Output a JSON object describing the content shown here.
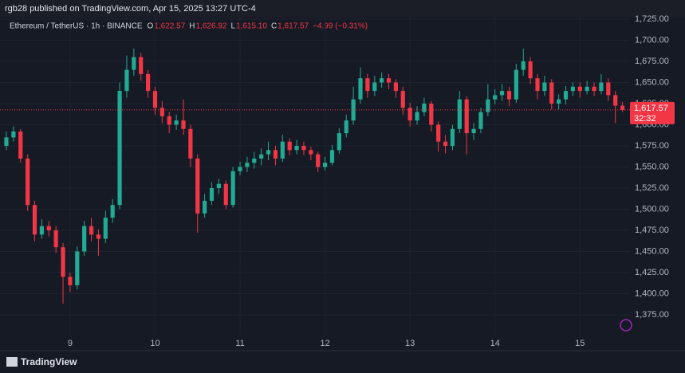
{
  "header": {
    "published": "rgb28 published on TradingView.com, Apr 15, 2025 13:27 UTC-4",
    "footer": "TradingView"
  },
  "chart_data": {
    "type": "candlestick",
    "title": "Ethereum / TetherUS · 1h · BINANCE",
    "ohlc_legend": [
      {
        "key": "O",
        "value": "1,622.57"
      },
      {
        "key": "H",
        "value": "1,626.92"
      },
      {
        "key": "L",
        "value": "1,615.10"
      },
      {
        "key": "C",
        "value": "1,617.57"
      }
    ],
    "change": "−4.99 (−0.31%)",
    "last_price_label": "1,617.57",
    "countdown": "32:32",
    "up_color": "#22ab94",
    "down_color": "#f23645",
    "categories": [
      null,
      null,
      null,
      null,
      null,
      null,
      null,
      null,
      null,
      "9",
      null,
      null,
      null,
      null,
      null,
      null,
      null,
      null,
      null,
      null,
      null,
      "10",
      null,
      null,
      null,
      null,
      null,
      null,
      null,
      null,
      null,
      null,
      null,
      "11",
      null,
      null,
      null,
      null,
      null,
      null,
      null,
      null,
      null,
      null,
      null,
      "12",
      null,
      null,
      null,
      null,
      null,
      null,
      null,
      null,
      null,
      null,
      null,
      "13",
      null,
      null,
      null,
      null,
      null,
      null,
      null,
      null,
      null,
      null,
      null,
      "14",
      null,
      null,
      null,
      null,
      null,
      null,
      null,
      null,
      null,
      null,
      null,
      "15",
      null,
      null,
      null,
      null,
      null,
      null
    ],
    "open": [
      1575,
      1585,
      1592,
      1560,
      1505,
      1470,
      1480,
      1475,
      1455,
      1420,
      1410,
      1450,
      1480,
      1470,
      1465,
      1490,
      1505,
      1640,
      1665,
      1680,
      1660,
      1640,
      1620,
      1610,
      1600,
      1605,
      1595,
      1560,
      1495,
      1510,
      1525,
      1530,
      1505,
      1545,
      1550,
      1555,
      1560,
      1565,
      1570,
      1560,
      1580,
      1570,
      1575,
      1570,
      1565,
      1550,
      1555,
      1570,
      1590,
      1605,
      1630,
      1655,
      1640,
      1650,
      1655,
      1650,
      1640,
      1620,
      1605,
      1615,
      1625,
      1600,
      1580,
      1575,
      1595,
      1630,
      1590,
      1595,
      1615,
      1630,
      1635,
      1640,
      1630,
      1665,
      1675,
      1655,
      1640,
      1650,
      1625,
      1630,
      1640,
      1645,
      1640,
      1645,
      1640,
      1650,
      1635,
      1622.57
    ],
    "high": [
      1592,
      1598,
      1595,
      1565,
      1510,
      1488,
      1486,
      1480,
      1460,
      1425,
      1456,
      1486,
      1490,
      1476,
      1498,
      1512,
      1650,
      1682,
      1690,
      1685,
      1665,
      1645,
      1628,
      1615,
      1612,
      1630,
      1600,
      1565,
      1518,
      1532,
      1536,
      1534,
      1550,
      1556,
      1562,
      1568,
      1572,
      1580,
      1575,
      1588,
      1584,
      1582,
      1580,
      1574,
      1568,
      1562,
      1576,
      1596,
      1612,
      1645,
      1668,
      1660,
      1658,
      1662,
      1660,
      1654,
      1645,
      1626,
      1622,
      1632,
      1628,
      1604,
      1588,
      1600,
      1640,
      1634,
      1602,
      1620,
      1648,
      1642,
      1648,
      1645,
      1672,
      1690,
      1680,
      1660,
      1658,
      1654,
      1636,
      1646,
      1650,
      1650,
      1652,
      1650,
      1660,
      1655,
      1640,
      1626.92
    ],
    "low": [
      1570,
      1580,
      1555,
      1498,
      1462,
      1465,
      1468,
      1448,
      1388,
      1402,
      1405,
      1445,
      1462,
      1445,
      1460,
      1484,
      1500,
      1632,
      1658,
      1652,
      1632,
      1612,
      1602,
      1590,
      1594,
      1588,
      1550,
      1472,
      1490,
      1505,
      1518,
      1500,
      1502,
      1540,
      1544,
      1548,
      1552,
      1558,
      1552,
      1556,
      1564,
      1565,
      1564,
      1558,
      1544,
      1546,
      1552,
      1566,
      1585,
      1600,
      1625,
      1632,
      1634,
      1644,
      1642,
      1632,
      1612,
      1598,
      1600,
      1610,
      1592,
      1568,
      1566,
      1570,
      1590,
      1565,
      1582,
      1590,
      1610,
      1624,
      1628,
      1622,
      1626,
      1658,
      1648,
      1630,
      1634,
      1618,
      1618,
      1624,
      1634,
      1632,
      1636,
      1634,
      1636,
      1628,
      1602,
      1615.1
    ],
    "close": [
      1585,
      1592,
      1560,
      1505,
      1470,
      1480,
      1475,
      1455,
      1420,
      1410,
      1450,
      1480,
      1470,
      1465,
      1490,
      1505,
      1640,
      1665,
      1680,
      1660,
      1640,
      1620,
      1610,
      1600,
      1605,
      1595,
      1560,
      1495,
      1510,
      1525,
      1530,
      1505,
      1545,
      1550,
      1555,
      1560,
      1565,
      1570,
      1560,
      1580,
      1570,
      1575,
      1570,
      1565,
      1550,
      1555,
      1570,
      1590,
      1605,
      1630,
      1655,
      1640,
      1650,
      1655,
      1650,
      1640,
      1620,
      1605,
      1615,
      1625,
      1600,
      1580,
      1575,
      1595,
      1630,
      1590,
      1595,
      1615,
      1630,
      1635,
      1640,
      1630,
      1665,
      1675,
      1655,
      1640,
      1650,
      1625,
      1630,
      1640,
      1645,
      1640,
      1645,
      1640,
      1650,
      1635,
      1622.57,
      1617.57
    ],
    "ylim": [
      1350,
      1730
    ],
    "yticks": [
      {
        "value": 1375,
        "label": "1,375.00"
      },
      {
        "value": 1400,
        "label": "1,400.00"
      },
      {
        "value": 1425,
        "label": "1,425.00"
      },
      {
        "value": 1450,
        "label": "1,450.00"
      },
      {
        "value": 1475,
        "label": "1,475.00"
      },
      {
        "value": 1500,
        "label": "1,500.00"
      },
      {
        "value": 1525,
        "label": "1,525.00"
      },
      {
        "value": 1550,
        "label": "1,550.00"
      },
      {
        "value": 1575,
        "label": "1,575.00"
      },
      {
        "value": 1600,
        "label": "1,600.00"
      },
      {
        "value": 1625,
        "label": "1,625.00"
      },
      {
        "value": 1650,
        "label": "1,650.00"
      },
      {
        "value": 1675,
        "label": "1,675.00"
      },
      {
        "value": 1700,
        "label": "1,700.00"
      },
      {
        "value": 1725,
        "label": "1,725.00"
      }
    ],
    "grid": true
  }
}
